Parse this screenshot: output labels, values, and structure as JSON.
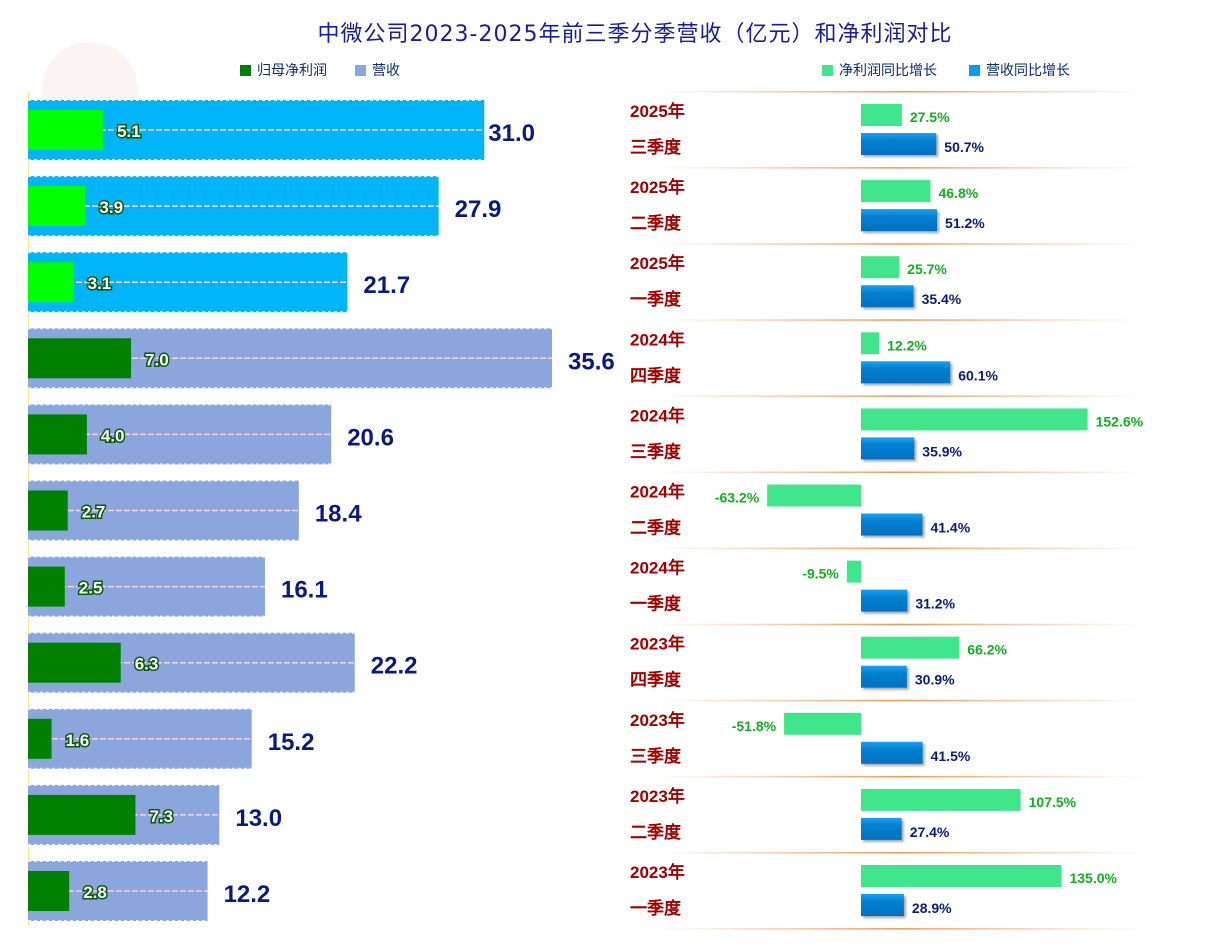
{
  "chart_data": {
    "type": "bar",
    "title": "中微公司2023-2025年前三季分季营收（亿元）和净利润对比",
    "legend_left": [
      {
        "name": "归母净利润",
        "color": "#008000"
      },
      {
        "name": "营收",
        "color": "#8aa6dc"
      }
    ],
    "legend_right": [
      {
        "name": "净利润同比增长",
        "color": "#40e68c"
      },
      {
        "name": "营收同比增长",
        "color": "#00a0e8"
      }
    ],
    "highlight_colors": {
      "revenue_2025": "#00b4f8",
      "net_profit_2025": "#00ff00"
    },
    "unit": "亿元",
    "categories": [
      {
        "year": "2025年",
        "quarter": "三季度"
      },
      {
        "year": "2025年",
        "quarter": "二季度"
      },
      {
        "year": "2025年",
        "quarter": "一季度"
      },
      {
        "year": "2024年",
        "quarter": "四季度"
      },
      {
        "year": "2024年",
        "quarter": "三季度"
      },
      {
        "year": "2024年",
        "quarter": "二季度"
      },
      {
        "year": "2024年",
        "quarter": "一季度"
      },
      {
        "year": "2023年",
        "quarter": "四季度"
      },
      {
        "year": "2023年",
        "quarter": "三季度"
      },
      {
        "year": "2023年",
        "quarter": "二季度"
      },
      {
        "year": "2023年",
        "quarter": "一季度"
      }
    ],
    "series": [
      {
        "name": "营收",
        "values": [
          31.0,
          27.9,
          21.7,
          35.6,
          20.6,
          18.4,
          16.1,
          22.2,
          15.2,
          13.0,
          12.2
        ]
      },
      {
        "name": "归母净利润",
        "values": [
          5.1,
          3.9,
          3.1,
          7.0,
          4.0,
          2.7,
          2.5,
          6.3,
          1.6,
          7.3,
          2.8
        ]
      },
      {
        "name": "净利润同比增长",
        "unit": "%",
        "values": [
          27.5,
          46.8,
          25.7,
          12.2,
          152.6,
          -63.2,
          -9.5,
          66.2,
          -51.8,
          107.5,
          135.0
        ]
      },
      {
        "name": "营收同比增长",
        "unit": "%",
        "values": [
          50.7,
          51.2,
          35.4,
          60.1,
          35.9,
          41.4,
          31.2,
          30.9,
          41.5,
          27.4,
          28.9
        ]
      }
    ]
  }
}
